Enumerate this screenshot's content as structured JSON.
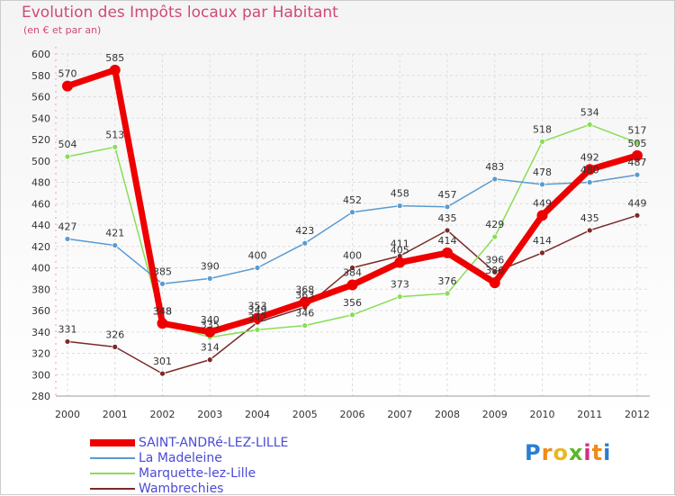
{
  "title": "Evolution des Impôts locaux par Habitant",
  "subtitle": "(en € et par an)",
  "brand": {
    "letters": [
      "P",
      "r",
      "o",
      "x",
      "i",
      "t",
      "i"
    ],
    "colors": [
      "#2a7fd0",
      "#f08a18",
      "#e8b820",
      "#5ab82a",
      "#d03080",
      "#f08a18",
      "#2a7fd0"
    ]
  },
  "chart_data": {
    "type": "line",
    "title": "Evolution des Impôts locaux par Habitant",
    "subtitle": "(en € et par an)",
    "xlabel": "",
    "ylabel": "",
    "ylim": [
      280,
      600
    ],
    "yticks": [
      280,
      300,
      320,
      340,
      360,
      380,
      400,
      420,
      440,
      460,
      480,
      500,
      520,
      540,
      560,
      580,
      600
    ],
    "categories": [
      "2000",
      "2001",
      "2002",
      "2003",
      "2004",
      "2005",
      "2006",
      "2007",
      "2008",
      "2009",
      "2010",
      "2011",
      "2012"
    ],
    "grid": true,
    "series": [
      {
        "name": "Wambrechies",
        "color": "#7a2a2a",
        "width": 1.5,
        "values": [
          331,
          326,
          301,
          314,
          349,
          363,
          400,
          411,
          435,
          396,
          414,
          435,
          449
        ]
      },
      {
        "name": "Marquette-lez-Lille",
        "color": "#88dd55",
        "width": 1.5,
        "values": [
          504,
          513,
          348,
          335,
          342,
          346,
          356,
          373,
          376,
          429,
          518,
          534,
          517
        ]
      },
      {
        "name": "La Madeleine",
        "color": "#5a9ad0",
        "width": 1.5,
        "values": [
          427,
          421,
          385,
          390,
          400,
          423,
          452,
          458,
          457,
          483,
          478,
          480,
          487
        ]
      },
      {
        "name": "SAINT-ANDRé-LEZ-LILLE",
        "color": "#ee0000",
        "width": 7,
        "values": [
          570,
          585,
          348,
          340,
          353,
          368,
          384,
          405,
          414,
          386,
          449,
          492,
          505
        ]
      }
    ],
    "legend_order": [
      "SAINT-ANDRé-LEZ-LILLE",
      "La Madeleine",
      "Marquette-lez-Lille",
      "Wambrechies"
    ],
    "legend_position": "bottom-left"
  }
}
